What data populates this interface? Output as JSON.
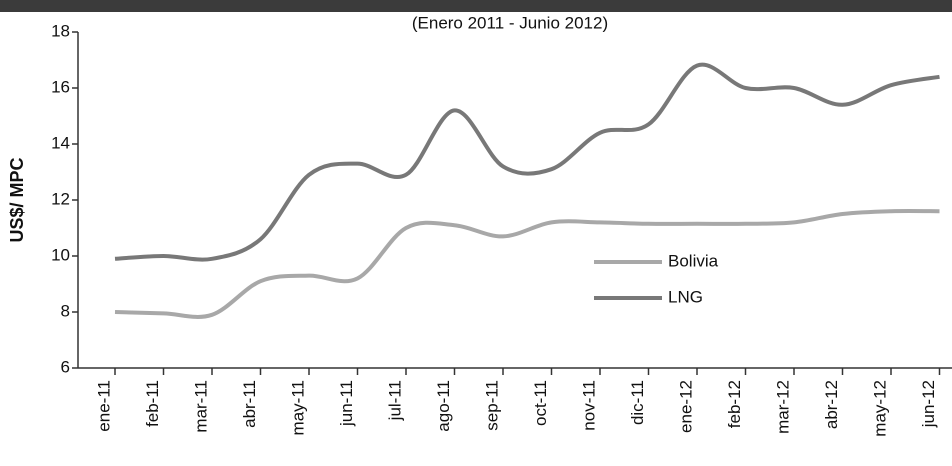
{
  "chart_data": {
    "type": "line",
    "subtitle": "(Enero 2011 - Junio 2012)",
    "y_label": "US$/ MPC",
    "categories": [
      "ene-11",
      "feb-11",
      "mar-11",
      "abr-11",
      "may-11",
      "jun-11",
      "jul-11",
      "ago-11",
      "sep-11",
      "oct-11",
      "nov-11",
      "dic-11",
      "ene-12",
      "feb-12",
      "mar-12",
      "abr-12",
      "may-12",
      "jun-12"
    ],
    "series": [
      {
        "name": "Bolivia",
        "color": "#a8a8a8",
        "values": [
          8.0,
          7.95,
          7.9,
          9.1,
          9.3,
          9.2,
          11.0,
          11.1,
          10.7,
          11.2,
          11.2,
          11.15,
          11.15,
          11.15,
          11.2,
          11.5,
          11.6,
          11.6
        ]
      },
      {
        "name": "LNG",
        "color": "#787878",
        "values": [
          9.9,
          10.0,
          9.9,
          10.6,
          12.9,
          13.3,
          12.9,
          15.2,
          13.2,
          13.1,
          14.4,
          14.7,
          16.8,
          16.0,
          16.0,
          15.4,
          16.1,
          16.4
        ]
      }
    ],
    "ylim": [
      6,
      18
    ],
    "yticks": [
      6,
      8,
      10,
      12,
      14,
      16,
      18
    ]
  }
}
